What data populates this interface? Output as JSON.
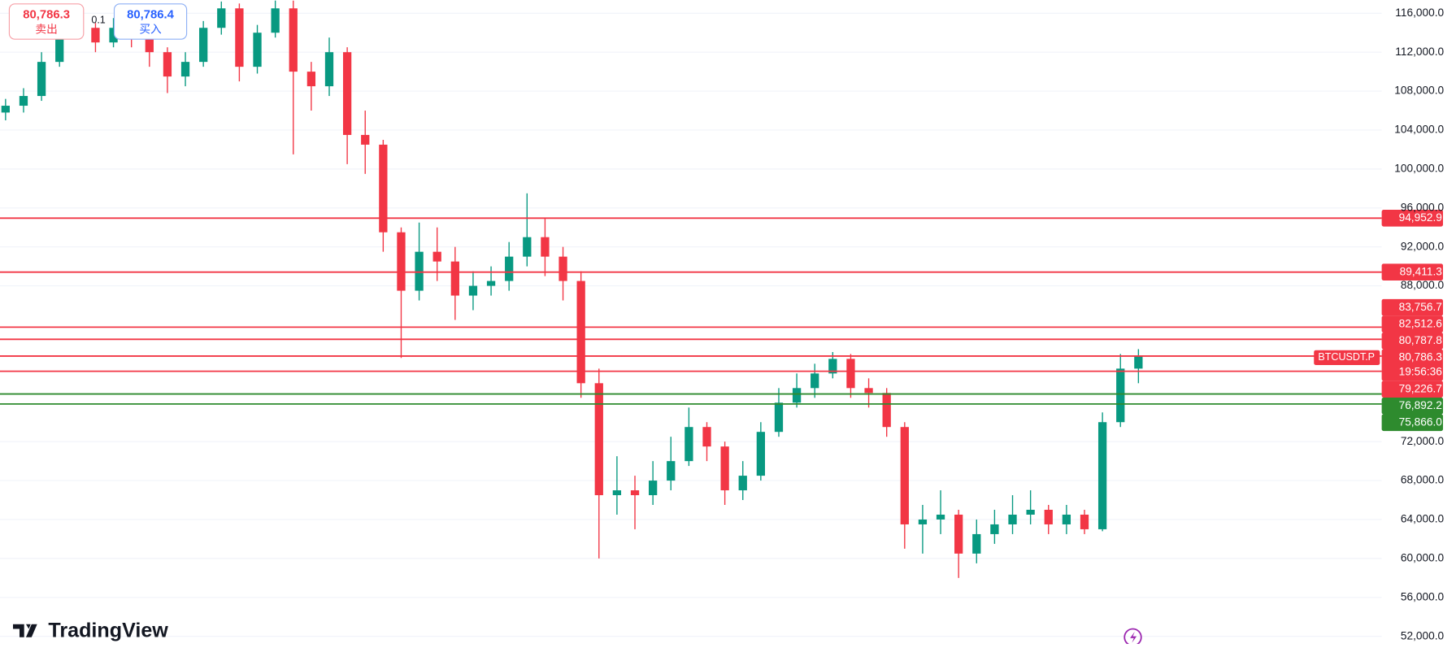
{
  "chart_data": {
    "type": "candlestick",
    "up_color": "#089981",
    "down_color": "#f23645",
    "open": [
      105800,
      106500,
      107500,
      111000,
      115500,
      114500,
      113000,
      114500,
      113500,
      112000,
      109500,
      111000,
      114500,
      116500,
      110500,
      114000,
      116500,
      110000,
      108500,
      112000,
      103500,
      102500,
      93500,
      87500,
      91500,
      90500,
      87000,
      88000,
      88500,
      91000,
      93000,
      91000,
      88500,
      78000,
      66500,
      67000,
      66500,
      68000,
      70000,
      73500,
      71500,
      67000,
      68500,
      73000,
      76000,
      77500,
      79000,
      80500,
      77500,
      77000,
      73500,
      63500,
      64000,
      64500,
      60500,
      62500,
      63500,
      64500,
      65000,
      63500,
      64500,
      63000,
      74000,
      79500
    ],
    "high": [
      107200,
      108300,
      112000,
      116800,
      116500,
      115000,
      115500,
      115200,
      114000,
      112500,
      112000,
      115200,
      117200,
      117000,
      114800,
      117300,
      117300,
      111000,
      113500,
      112500,
      106000,
      103000,
      94000,
      94500,
      94000,
      92000,
      89500,
      90000,
      92500,
      97500,
      95000,
      92000,
      89500,
      79500,
      70500,
      68500,
      70000,
      72500,
      75500,
      74000,
      72000,
      70000,
      74000,
      77500,
      79000,
      80000,
      81200,
      81000,
      78500,
      77500,
      74000,
      65500,
      67000,
      65000,
      64000,
      65000,
      66500,
      67000,
      65500,
      65500,
      65000,
      75000,
      81000,
      81500
    ],
    "low": [
      105000,
      105800,
      107000,
      110500,
      113500,
      112000,
      112500,
      112500,
      110500,
      107800,
      108500,
      110500,
      113800,
      109000,
      109800,
      113500,
      101500,
      106000,
      107500,
      100500,
      99500,
      91500,
      80600,
      86500,
      88500,
      84500,
      85500,
      87000,
      87500,
      90000,
      89000,
      86500,
      76500,
      60000,
      64500,
      63000,
      65500,
      67000,
      69500,
      70000,
      65500,
      66000,
      68000,
      72500,
      75500,
      76500,
      78500,
      76500,
      75500,
      72500,
      61000,
      60500,
      62500,
      58000,
      59500,
      61500,
      62500,
      63500,
      62500,
      62500,
      62500,
      62800,
      73500,
      78000
    ],
    "close": [
      106500,
      107500,
      111000,
      115500,
      114500,
      113000,
      114500,
      113500,
      112000,
      109500,
      111000,
      114500,
      116500,
      110500,
      114000,
      116500,
      110000,
      108500,
      112000,
      103500,
      102500,
      93500,
      87500,
      91500,
      90500,
      87000,
      88000,
      88500,
      91000,
      93000,
      91000,
      88500,
      78000,
      66500,
      67000,
      66500,
      68000,
      70000,
      73500,
      71500,
      67000,
      68500,
      73000,
      76000,
      77500,
      79000,
      80500,
      77500,
      77000,
      73500,
      63500,
      64000,
      64500,
      60500,
      62500,
      63500,
      64500,
      65000,
      63500,
      64500,
      63000,
      74000,
      79500,
      80786.3
    ],
    "ylim": [
      51240,
      117340
    ],
    "yticks": [
      {
        "value": 52000,
        "label": "52,000.0"
      },
      {
        "value": 56000,
        "label": "56,000.0"
      },
      {
        "value": 60000,
        "label": "60,000.0"
      },
      {
        "value": 64000,
        "label": "64,000.0"
      },
      {
        "value": 68000,
        "label": "68,000.0"
      },
      {
        "value": 72000,
        "label": "72,000.0"
      },
      {
        "value": 88000,
        "label": "88,000.0"
      },
      {
        "value": 92000,
        "label": "92,000.0"
      },
      {
        "value": 96000,
        "label": "96,000.0"
      },
      {
        "value": 100000,
        "label": "100,000.0"
      },
      {
        "value": 104000,
        "label": "104,000.0"
      },
      {
        "value": 108000,
        "label": "108,000.0"
      },
      {
        "value": 112000,
        "label": "112,000.0"
      },
      {
        "value": 116000,
        "label": "116,000.0"
      }
    ],
    "grid": true,
    "levels": [
      {
        "value": 94952.9,
        "label": "94,952.9",
        "color": "#f23645"
      },
      {
        "value": 89411.3,
        "label": "89,411.3",
        "color": "#f23645"
      },
      {
        "value": 83756.7,
        "label": "83,756.7",
        "color": "#f23645"
      },
      {
        "value": 82512.6,
        "label": "82,512.6",
        "color": "#f23645"
      },
      {
        "value": 80787.8,
        "label": "80,787.8",
        "color": "#f23645"
      },
      {
        "value": 79226.7,
        "label": "79,226.7",
        "color": "#f23645"
      },
      {
        "value": 76892.2,
        "label": "76,892.2",
        "color": "#2e8b2e"
      },
      {
        "value": 75866.0,
        "label": "75,866.0",
        "color": "#2e8b2e"
      }
    ],
    "price_line": {
      "value": 80786.3,
      "label": "80,786.3",
      "symbol": "BTCUSDT.P",
      "countdown": "19:56:36",
      "color": "#f23645"
    },
    "order_panel": {
      "sell_price": "80,786.3",
      "sell_label": "卖出",
      "quantity": "0.1",
      "buy_price": "80,786.4",
      "buy_label": "买入"
    },
    "brand": "TradingView"
  }
}
